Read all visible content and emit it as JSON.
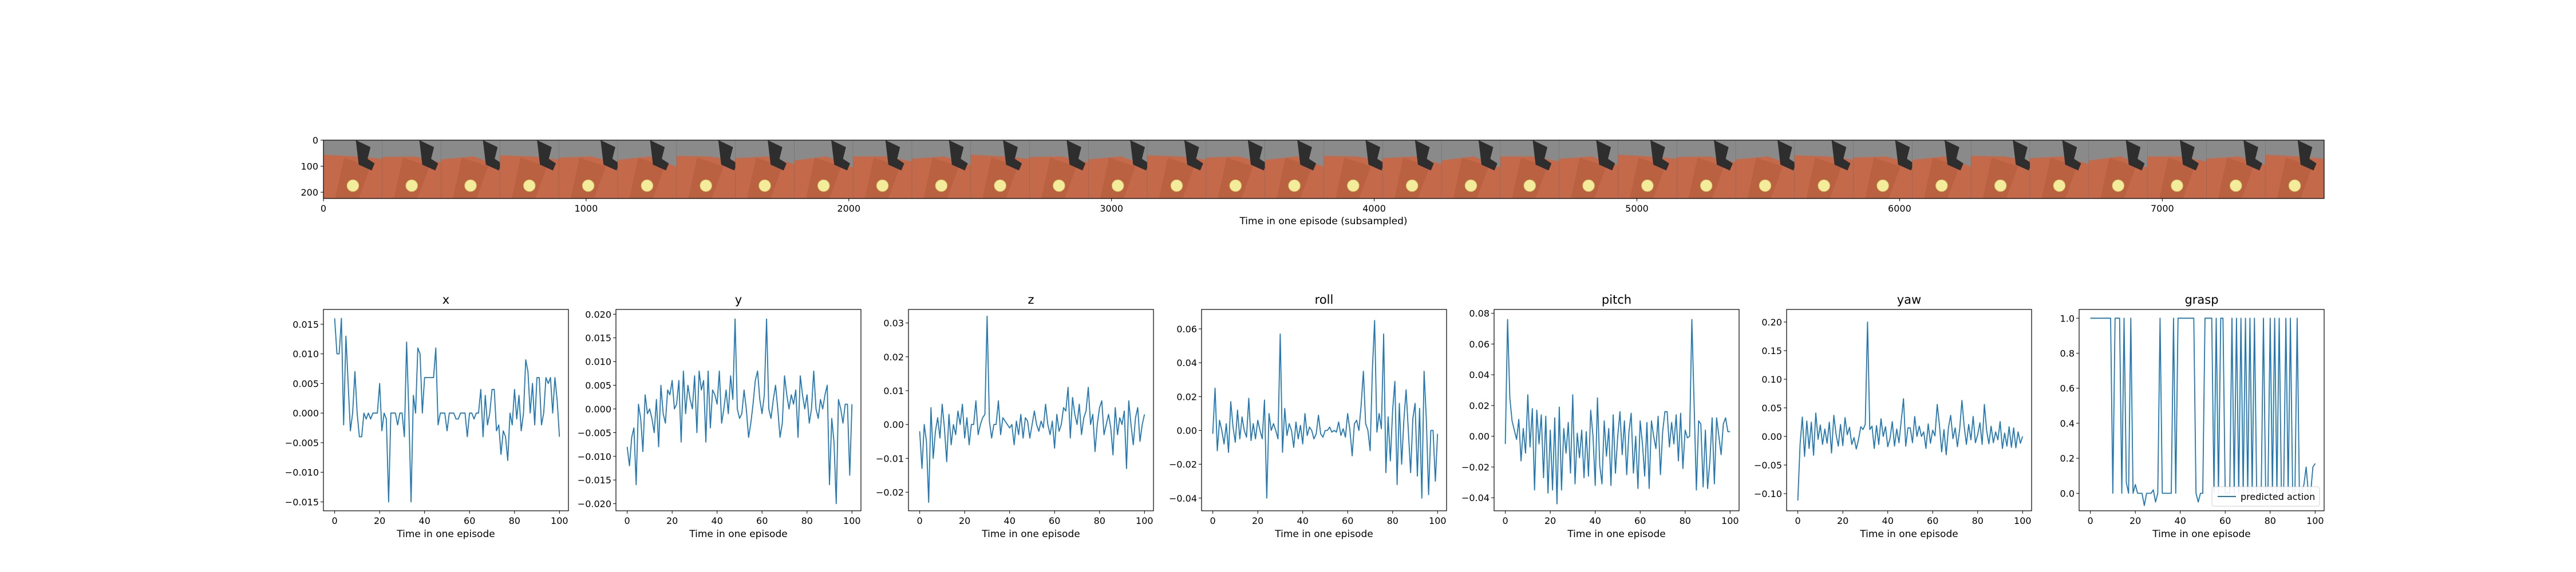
{
  "strip": {
    "xlabel": "Time in one episode (subsampled)",
    "x_ticks": [
      "0",
      "1000",
      "2000",
      "3000",
      "4000",
      "5000",
      "6000",
      "7000"
    ],
    "x_range": [
      0,
      7616
    ],
    "y_ticks": [
      "0",
      "100",
      "200"
    ],
    "y_range": [
      0,
      224
    ],
    "frame_count": 34,
    "colors": {
      "floor": "#c46a4a",
      "bg": "#8a8a8a",
      "ball": "#f2ec9b",
      "gripper": "#2e2e2e"
    }
  },
  "legend": {
    "label": "predicted action"
  },
  "colors": {
    "line": "#1f77b4"
  },
  "chart_data": [
    {
      "type": "line",
      "title": "x",
      "xlabel": "Time in one episode",
      "xlim": [
        -5,
        104
      ],
      "ylim": [
        -0.0165,
        0.0175
      ],
      "x_ticks": [
        0,
        20,
        40,
        60,
        80,
        100
      ],
      "y_ticks": [
        -0.015,
        -0.01,
        -0.005,
        0.0,
        0.005,
        0.01,
        0.015
      ],
      "y_tick_labels": [
        "−0.015",
        "−0.010",
        "−0.005",
        "0.000",
        "0.005",
        "0.010",
        "0.015"
      ],
      "values": [
        0.016,
        0.01,
        0.01,
        0.016,
        -0.002,
        0.013,
        0.005,
        -0.003,
        0.0,
        0.007,
        0.0,
        -0.004,
        -0.004,
        0.0,
        -0.001,
        0.0,
        -0.001,
        0.0,
        0.0,
        0.0,
        0.005,
        -0.003,
        0.0,
        -0.001,
        -0.015,
        0.0,
        0.0,
        0.0,
        -0.002,
        0.0,
        0.0,
        -0.004,
        0.012,
        0.0,
        -0.015,
        0.003,
        0.0,
        0.011,
        0.01,
        0.0,
        0.006,
        0.006,
        0.006,
        0.006,
        0.006,
        0.011,
        -0.002,
        0.0,
        0.0,
        0.0,
        -0.003,
        0.0,
        0.0,
        0.0,
        -0.001,
        -0.001,
        0.0,
        0.0,
        0.0,
        -0.004,
        0.0,
        0.0,
        -0.001,
        0.0,
        0.0,
        0.004,
        -0.004,
        0.003,
        -0.002,
        0.0,
        0.004,
        0.004,
        -0.003,
        -0.002,
        -0.007,
        -0.003,
        -0.004,
        -0.008,
        0.0,
        -0.002,
        0.004,
        -0.001,
        0.003,
        -0.003,
        0.0,
        0.009,
        0.007,
        0.0,
        0.005,
        -0.002,
        0.006,
        0.006,
        -0.002,
        0.0,
        0.006,
        0.005,
        0.006,
        0.0,
        0.006,
        0.002,
        -0.004
      ]
    },
    {
      "type": "line",
      "title": "y",
      "xlabel": "Time in one episode",
      "xlim": [
        -5,
        104
      ],
      "ylim": [
        -0.0215,
        0.021
      ],
      "x_ticks": [
        0,
        20,
        40,
        60,
        80,
        100
      ],
      "y_ticks": [
        -0.02,
        -0.015,
        -0.01,
        -0.005,
        0.0,
        0.005,
        0.01,
        0.015,
        0.02
      ],
      "y_tick_labels": [
        "−0.020",
        "−0.015",
        "−0.010",
        "−0.005",
        "0.000",
        "0.005",
        "0.010",
        "0.015",
        "0.020"
      ],
      "values": [
        -0.008,
        -0.012,
        -0.006,
        -0.004,
        -0.016,
        0.001,
        -0.002,
        -0.009,
        0.003,
        -0.001,
        0.0,
        -0.002,
        -0.005,
        0.002,
        -0.008,
        0.005,
        -0.001,
        -0.003,
        0.004,
        0.003,
        0.006,
        0.0,
        0.001,
        0.006,
        -0.007,
        0.008,
        -0.001,
        0.005,
        0.002,
        0.0,
        0.007,
        -0.005,
        0.008,
        0.004,
        0.006,
        -0.007,
        0.008,
        -0.004,
        0.004,
        0.003,
        0.001,
        0.008,
        -0.003,
        0.0,
        0.004,
        -0.001,
        0.007,
        0.002,
        0.019,
        0.0,
        -0.002,
        -0.001,
        0.004,
        0.0,
        -0.006,
        -0.003,
        0.001,
        0.006,
        0.008,
        0.002,
        -0.001,
        0.003,
        0.019,
        0.0,
        -0.002,
        0.002,
        0.005,
        0.0,
        -0.006,
        -0.003,
        0.007,
        0.003,
        0.0,
        0.003,
        0.001,
        0.004,
        -0.006,
        0.007,
        0.003,
        0.0,
        0.003,
        -0.003,
        0.0,
        0.008,
        0.0,
        -0.002,
        0.002,
        0.0,
        0.003,
        0.005,
        -0.016,
        -0.002,
        -0.007,
        -0.02,
        0.002,
        0.0,
        -0.003,
        0.001,
        0.001,
        -0.014,
        0.001
      ]
    },
    {
      "type": "line",
      "title": "z",
      "xlabel": "Time in one episode",
      "xlim": [
        -5,
        104
      ],
      "ylim": [
        -0.0255,
        0.034
      ],
      "x_ticks": [
        0,
        20,
        40,
        60,
        80,
        100
      ],
      "y_ticks": [
        -0.02,
        -0.01,
        0.0,
        0.01,
        0.02,
        0.03
      ],
      "y_tick_labels": [
        "−0.02",
        "−0.01",
        "0.00",
        "0.01",
        "0.02",
        "0.03"
      ],
      "values": [
        -0.002,
        -0.013,
        0.0,
        -0.005,
        -0.023,
        0.005,
        -0.01,
        -0.002,
        0.002,
        -0.004,
        0.006,
        -0.001,
        -0.011,
        0.003,
        -0.006,
        0.0,
        -0.003,
        0.004,
        0.0,
        0.006,
        -0.004,
        0.002,
        -0.006,
        0.0,
        0.0,
        0.007,
        -0.003,
        0.0,
        0.002,
        0.003,
        0.032,
        0.001,
        -0.004,
        0.0,
        0.0,
        0.007,
        -0.003,
        0.002,
        0.001,
        0.0,
        -0.001,
        0.0,
        -0.006,
        0.001,
        -0.003,
        0.003,
        -0.004,
        0.002,
        0.001,
        -0.004,
        0.0,
        0.004,
        0.0,
        -0.002,
        0.001,
        -0.001,
        0.006,
        0.0,
        -0.003,
        0.001,
        -0.007,
        0.003,
        -0.002,
        0.0,
        0.005,
        0.004,
        0.011,
        -0.004,
        0.008,
        0.003,
        0.0,
        0.006,
        -0.003,
        0.002,
        0.004,
        0.011,
        0.0,
        0.003,
        -0.008,
        0.0,
        0.005,
        0.007,
        -0.003,
        0.0,
        0.003,
        -0.001,
        -0.009,
        0.005,
        -0.003,
        0.002,
        0.0,
        0.004,
        -0.013,
        0.007,
        0.0,
        -0.006,
        0.002,
        0.005,
        -0.005,
        0.0,
        0.003
      ]
    },
    {
      "type": "line",
      "title": "roll",
      "xlabel": "Time in one episode",
      "xlim": [
        -5,
        104
      ],
      "ylim": [
        -0.0475,
        0.0715
      ],
      "x_ticks": [
        0,
        20,
        40,
        60,
        80,
        100
      ],
      "y_ticks": [
        -0.04,
        -0.02,
        0.0,
        0.02,
        0.04,
        0.06
      ],
      "y_tick_labels": [
        "−0.04",
        "−0.02",
        "0.00",
        "0.02",
        "0.04",
        "0.06"
      ],
      "values": [
        -0.002,
        0.025,
        -0.012,
        0.006,
        0.0,
        -0.008,
        0.004,
        -0.013,
        0.017,
        0.002,
        -0.007,
        0.012,
        -0.005,
        0.008,
        0.0,
        -0.004,
        0.019,
        -0.006,
        0.004,
        -0.005,
        0.006,
        0.0,
        -0.005,
        0.018,
        -0.04,
        0.01,
        0.0,
        0.004,
        0.0,
        -0.005,
        0.057,
        -0.013,
        0.013,
        -0.003,
        0.004,
        0.0,
        -0.01,
        0.005,
        -0.005,
        0.003,
        -0.008,
        0.01,
        -0.003,
        0.002,
        0.0,
        -0.005,
        -0.002,
        0.009,
        -0.002,
        -0.004,
        0.0,
        0.0,
        0.002,
        -0.001,
        0.0,
        -0.001,
        0.005,
        -0.003,
        0.001,
        -0.004,
        0.01,
        0.0,
        -0.015,
        0.004,
        0.006,
        0.0,
        0.015,
        0.035,
        0.004,
        0.0,
        -0.012,
        0.036,
        0.065,
        -0.001,
        0.01,
        0.001,
        0.057,
        -0.025,
        0.008,
        -0.018,
        0.012,
        0.029,
        -0.032,
        0.016,
        -0.02,
        0.006,
        0.024,
        0.0,
        -0.025,
        0.007,
        0.016,
        -0.027,
        0.013,
        -0.04,
        0.035,
        0.006,
        -0.038,
        0.0,
        0.0,
        -0.03,
        -0.002
      ]
    },
    {
      "type": "line",
      "title": "pitch",
      "xlabel": "Time in one episode",
      "xlim": [
        -5,
        104
      ],
      "ylim": [
        -0.0485,
        0.0825
      ],
      "x_ticks": [
        0,
        20,
        40,
        60,
        80,
        100
      ],
      "y_ticks": [
        -0.04,
        -0.02,
        0.0,
        0.02,
        0.04,
        0.06,
        0.08
      ],
      "y_tick_labels": [
        "−0.04",
        "−0.02",
        "0.00",
        "0.02",
        "0.04",
        "0.06",
        "0.08"
      ],
      "values": [
        -0.005,
        0.076,
        0.025,
        0.01,
        0.004,
        -0.002,
        0.011,
        -0.016,
        0.005,
        -0.011,
        0.027,
        -0.007,
        0.018,
        -0.035,
        0.017,
        -0.005,
        0.014,
        -0.027,
        0.013,
        -0.037,
        0.004,
        -0.035,
        0.012,
        -0.044,
        0.019,
        -0.035,
        0.005,
        -0.011,
        0.009,
        -0.024,
        0.027,
        -0.031,
        0.002,
        -0.014,
        0.004,
        -0.027,
        0.003,
        -0.026,
        0.017,
        0.0,
        -0.032,
        0.025,
        -0.019,
        -0.031,
        0.01,
        -0.013,
        0.005,
        -0.032,
        0.014,
        -0.024,
        0.0,
        0.016,
        -0.012,
        0.01,
        -0.025,
        0.003,
        0.015,
        -0.024,
        0.0,
        -0.034,
        0.01,
        -0.005,
        -0.026,
        0.009,
        -0.034,
        0.01,
        0.0,
        -0.008,
        0.013,
        -0.025,
        0.003,
        0.016,
        0.016,
        -0.007,
        0.009,
        -0.005,
        0.014,
        -0.016,
        0.015,
        -0.021,
        0.004,
        -0.001,
        0.0,
        0.076,
        0.02,
        -0.035,
        0.01,
        0.008,
        -0.033,
        0.004,
        -0.034,
        -0.016,
        0.012,
        -0.031,
        0.012,
        0.0,
        -0.012,
        0.008,
        0.012,
        0.003,
        0.003
      ]
    },
    {
      "type": "line",
      "title": "yaw",
      "xlabel": "Time in one episode",
      "xlim": [
        -5,
        104
      ],
      "ylim": [
        -0.13,
        0.222
      ],
      "x_ticks": [
        0,
        20,
        40,
        60,
        80,
        100
      ],
      "y_ticks": [
        -0.1,
        -0.05,
        0.0,
        0.05,
        0.1,
        0.15,
        0.2
      ],
      "y_tick_labels": [
        "−0.10",
        "−0.05",
        "0.00",
        "0.05",
        "0.10",
        "0.15",
        "0.20"
      ],
      "values": [
        -0.112,
        -0.013,
        0.034,
        -0.035,
        0.027,
        -0.021,
        0.025,
        -0.033,
        0.041,
        -0.005,
        0.02,
        -0.014,
        0.013,
        -0.012,
        0.025,
        -0.029,
        0.037,
        0.004,
        -0.017,
        0.021,
        -0.016,
        0.033,
        0.003,
        0.016,
        -0.014,
        -0.002,
        -0.022,
        -0.005,
        0.017,
        0.012,
        0.021,
        0.2,
        0.012,
        0.018,
        -0.021,
        0.019,
        -0.014,
        0.031,
        0.0,
        0.017,
        -0.018,
        -0.004,
        0.026,
        -0.017,
        0.013,
        -0.011,
        0.028,
        0.066,
        -0.017,
        0.015,
        0.015,
        -0.011,
        0.035,
        0.0,
        0.018,
        0.0,
        0.008,
        -0.021,
        0.022,
        -0.012,
        0.011,
        0.001,
        0.056,
        0.02,
        -0.027,
        0.012,
        -0.032,
        0.015,
        0.037,
        -0.004,
        0.015,
        -0.018,
        0.012,
        0.063,
        0.018,
        -0.014,
        0.021,
        -0.006,
        0.035,
        -0.011,
        0.003,
        0.024,
        -0.014,
        0.056,
        0.01,
        -0.013,
        0.018,
        -0.011,
        0.008,
        -0.006,
        0.026,
        -0.021,
        0.006,
        -0.017,
        0.017,
        -0.019,
        0.015,
        -0.02,
        0.008,
        -0.012,
        0.0
      ]
    },
    {
      "type": "line",
      "title": "grasp",
      "xlabel": "Time in one episode",
      "xlim": [
        -5,
        104
      ],
      "ylim": [
        -0.1,
        1.05
      ],
      "x_ticks": [
        0,
        20,
        40,
        60,
        80,
        100
      ],
      "y_ticks": [
        0.0,
        0.2,
        0.4,
        0.6,
        0.8,
        1.0
      ],
      "y_tick_labels": [
        "0.0",
        "0.2",
        "0.4",
        "0.6",
        "0.8",
        "1.0"
      ],
      "legend": "predicted action",
      "values": [
        1.0,
        1.0,
        1.0,
        1.0,
        1.0,
        1.0,
        1.0,
        1.0,
        1.0,
        1.0,
        0.0,
        1.0,
        1.0,
        1.0,
        0.0,
        1.0,
        0.06,
        0.0,
        1.0,
        0.0,
        0.05,
        0.0,
        0.0,
        0.0,
        -0.07,
        0.0,
        0.0,
        0.0,
        0.02,
        -0.05,
        0.0,
        1.0,
        0.0,
        0.0,
        0.0,
        0.0,
        0.0,
        1.0,
        0.0,
        1.0,
        1.0,
        1.0,
        1.0,
        1.0,
        1.0,
        1.0,
        1.0,
        0.0,
        -0.05,
        0.0,
        0.0,
        1.0,
        1.0,
        1.0,
        1.0,
        0.0,
        1.0,
        0.0,
        1.0,
        1.0,
        0.0,
        0.0,
        0.0,
        1.0,
        0.0,
        1.0,
        0.0,
        1.0,
        0.0,
        1.0,
        0.0,
        1.0,
        0.0,
        1.0,
        0.0,
        -0.05,
        0.0,
        1.0,
        0.0,
        0.0,
        1.0,
        0.0,
        1.0,
        0.0,
        1.0,
        0.0,
        0.0,
        1.0,
        0.0,
        1.0,
        0.0,
        0.0,
        1.0,
        0.0,
        0.0,
        0.05,
        0.15,
        0.0,
        0.0,
        0.15,
        0.17
      ]
    }
  ]
}
